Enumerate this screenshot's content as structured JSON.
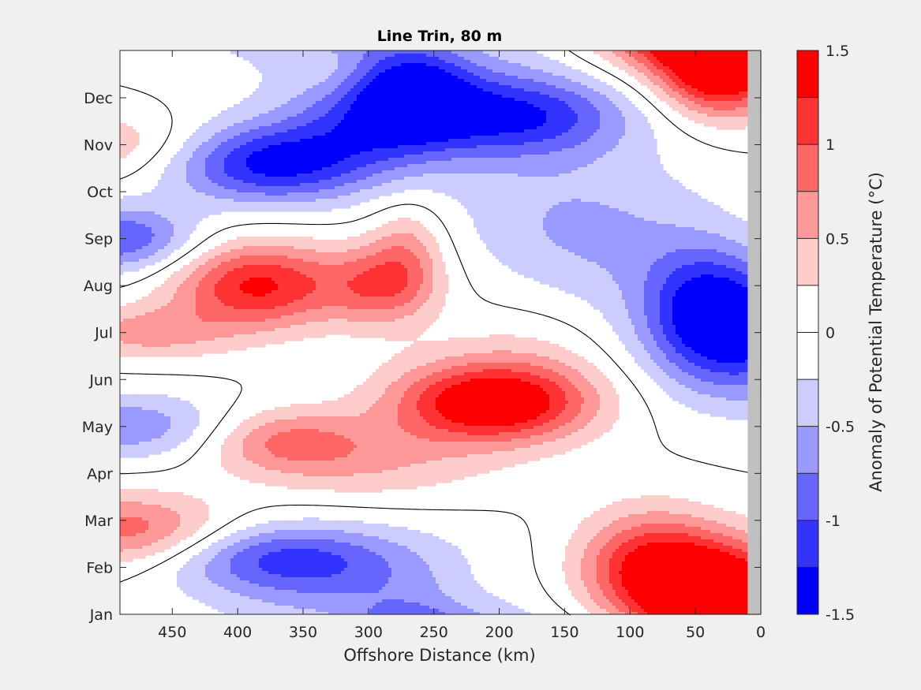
{
  "chart_data": {
    "type": "heatmap",
    "subtype": "filled-contour",
    "title": "Line Trin, 80 m",
    "xlabel": "Offshore Distance (km)",
    "ylabel": "",
    "colorbar_label": "Anomaly of Potential Temperature (°C)",
    "x_reversed": true,
    "xlim": [
      0,
      490
    ],
    "x_ticks": [
      450,
      400,
      350,
      300,
      250,
      200,
      150,
      100,
      50,
      0
    ],
    "x_tick_labels": [
      "450",
      "400",
      "350",
      "300",
      "250",
      "200",
      "150",
      "100",
      "50",
      "0"
    ],
    "y_ticks": [
      "Jan",
      "Feb",
      "Mar",
      "Apr",
      "May",
      "Jun",
      "Jul",
      "Aug",
      "Sep",
      "Oct",
      "Nov",
      "Dec"
    ],
    "clim": [
      -1.5,
      1.5
    ],
    "contour_levels": [
      -1.5,
      -1.25,
      -1.0,
      -0.75,
      -0.5,
      -0.25,
      0.0,
      0.25,
      0.5,
      0.75,
      1.0,
      1.25,
      1.5
    ],
    "colorbar_ticks": [
      1.5,
      1,
      0.5,
      0,
      -0.5,
      -1,
      -1.5
    ],
    "colorbar_tick_labels": [
      "1.5",
      "1",
      "0.5",
      "0",
      "-0.5",
      "-1",
      "-1.5"
    ],
    "colormap": [
      "#0000ff",
      "#3333ff",
      "#6666ff",
      "#9999ff",
      "#ccccff",
      "#ffffff",
      "#ffffff",
      "#ffcccc",
      "#ff9999",
      "#ff6666",
      "#ff3333",
      "#ff0000"
    ],
    "no_data_color": "#c0c0c0",
    "no_data_x_range": [
      0,
      10
    ],
    "zero_contour_color": "#000000",
    "anomaly_features": [
      {
        "x": 30,
        "month": 11.6,
        "value": 1.55,
        "sx": 32,
        "sy": 0.7
      },
      {
        "x": 40,
        "month": 0.6,
        "value": 1.5,
        "sx": 55,
        "sy": 0.75
      },
      {
        "x": 85,
        "month": 1.2,
        "value": 0.8,
        "sx": 38,
        "sy": 0.8
      },
      {
        "x": 10,
        "month": 6.0,
        "value": -1.3,
        "sx": 50,
        "sy": 1.0
      },
      {
        "x": 45,
        "month": 6.6,
        "value": -0.7,
        "sx": 30,
        "sy": 0.9
      },
      {
        "x": 200,
        "month": 4.5,
        "value": 1.2,
        "sx": 50,
        "sy": 0.55
      },
      {
        "x": 175,
        "month": 5.0,
        "value": 0.35,
        "sx": 45,
        "sy": 1.0
      },
      {
        "x": 240,
        "month": 4.5,
        "value": 0.4,
        "sx": 45,
        "sy": 0.8
      },
      {
        "x": 365,
        "month": 3.7,
        "value": 0.75,
        "sx": 45,
        "sy": 0.5
      },
      {
        "x": 300,
        "month": 3.2,
        "value": 0.4,
        "sx": 60,
        "sy": 0.6
      },
      {
        "x": 385,
        "month": 7.0,
        "value": 1.3,
        "sx": 45,
        "sy": 0.65
      },
      {
        "x": 290,
        "month": 7.0,
        "value": 0.85,
        "sx": 30,
        "sy": 0.6
      },
      {
        "x": 270,
        "month": 7.8,
        "value": 0.5,
        "sx": 20,
        "sy": 0.7
      },
      {
        "x": 470,
        "month": 6.0,
        "value": 0.6,
        "sx": 45,
        "sy": 0.4
      },
      {
        "x": 480,
        "month": 1.8,
        "value": 0.9,
        "sx": 50,
        "sy": 0.55
      },
      {
        "x": 500,
        "month": 10.0,
        "value": 0.5,
        "sx": 55,
        "sy": 0.5
      },
      {
        "x": 375,
        "month": 9.6,
        "value": -1.3,
        "sx": 55,
        "sy": 0.6
      },
      {
        "x": 290,
        "month": 10.5,
        "value": -0.7,
        "sx": 45,
        "sy": 0.65
      },
      {
        "x": 265,
        "month": 11.2,
        "value": -0.9,
        "sx": 30,
        "sy": 0.6
      },
      {
        "x": 180,
        "month": 10.6,
        "value": -0.9,
        "sx": 55,
        "sy": 0.6
      },
      {
        "x": 240,
        "month": 10.8,
        "value": -0.5,
        "sx": 90,
        "sy": 1.1
      },
      {
        "x": 110,
        "month": 8.0,
        "value": -0.45,
        "sx": 60,
        "sy": 1.2
      },
      {
        "x": 180,
        "month": 8.3,
        "value": -0.2,
        "sx": 50,
        "sy": 0.9
      },
      {
        "x": 490,
        "month": 8.0,
        "value": -1.0,
        "sx": 40,
        "sy": 0.5
      },
      {
        "x": 480,
        "month": 4.0,
        "value": -0.7,
        "sx": 55,
        "sy": 0.5
      },
      {
        "x": 370,
        "month": 1.2,
        "value": -0.75,
        "sx": 60,
        "sy": 0.5
      },
      {
        "x": 320,
        "month": 0.8,
        "value": -0.5,
        "sx": 80,
        "sy": 0.8
      },
      {
        "x": 215,
        "month": 0.7,
        "value": 0.1,
        "sx": 25,
        "sy": 0.5
      },
      {
        "x": 330,
        "month": 11.6,
        "value": 0.15,
        "sx": 18,
        "sy": 0.35
      }
    ]
  }
}
